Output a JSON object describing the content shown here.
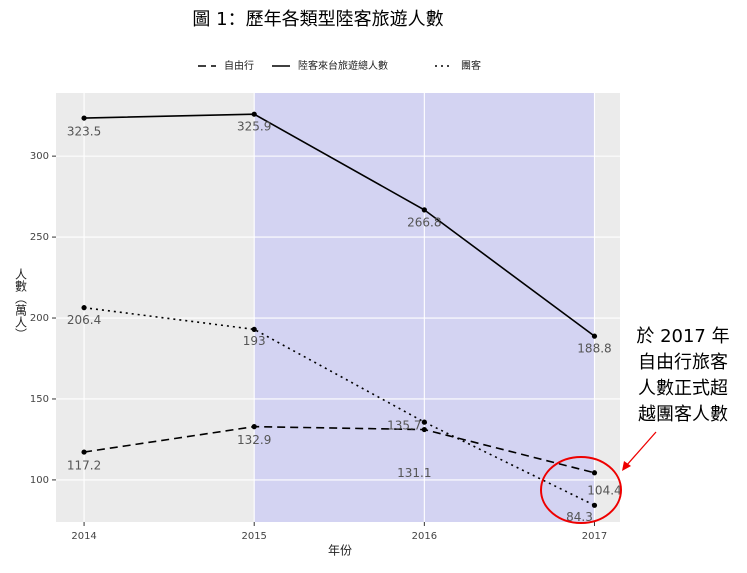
{
  "chart_data": {
    "type": "line",
    "title": "圖 1：歷年各類型陸客旅遊人數",
    "x_label": "年份",
    "y_label": "人數（萬人）",
    "x": [
      2014,
      2015,
      2016,
      2017
    ],
    "series": [
      {
        "name": "自由行",
        "color": "#000000",
        "dash": "dashed",
        "values": [
          117.2,
          132.9,
          131.1,
          104.4
        ]
      },
      {
        "name": "陸客來台旅遊總人數",
        "color": "#000000",
        "dash": "solid",
        "values": [
          323.5,
          325.9,
          266.8,
          188.8
        ]
      },
      {
        "name": "團客",
        "color": "#000000",
        "dash": "dotted",
        "values": [
          206.4,
          193,
          135.7,
          84.3
        ]
      }
    ],
    "xlim": [
      2013.835,
      2017.15
    ],
    "ylim": [
      74,
      339
    ],
    "xticks": [
      2014,
      2015,
      2016,
      2017
    ],
    "yticks": [
      100,
      150,
      200,
      250,
      300
    ],
    "highlight": [
      2015,
      2017
    ],
    "highlight_color": "#d3d3f2",
    "grid": true,
    "legend": "top",
    "annotation": [
      "於 2017 年",
      "自由行旅客",
      "人數正式超",
      "越團客人數"
    ]
  }
}
